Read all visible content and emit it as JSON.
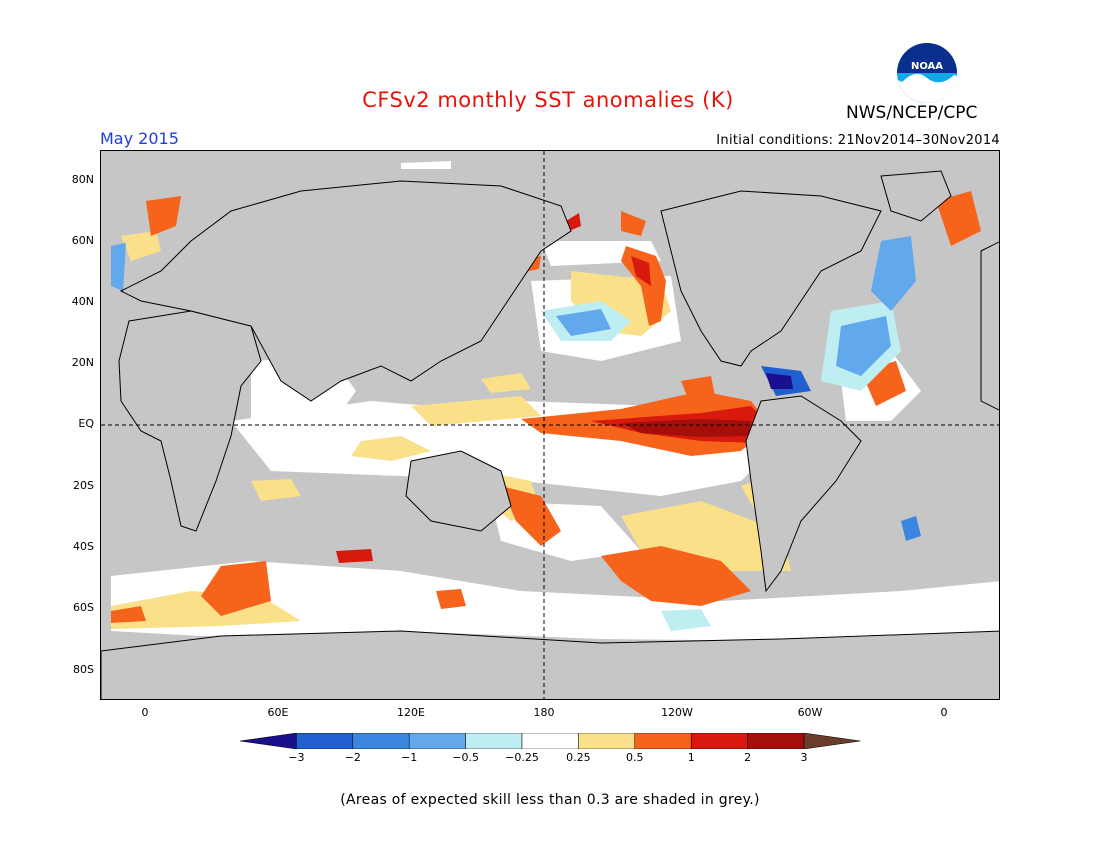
{
  "header": {
    "title": "CFSv2 monthly SST anomalies (K)",
    "agency": "NWS/NCEP/CPC",
    "logo_text": "NOAA",
    "month": "May 2015",
    "initial_conditions": "Initial conditions: 21Nov2014–30Nov2014"
  },
  "map": {
    "lat_labels": [
      "80N",
      "60N",
      "40N",
      "20N",
      "EQ",
      "20S",
      "40S",
      "60S",
      "80S"
    ],
    "lon_labels": [
      "0",
      "60E",
      "120E",
      "180",
      "120W",
      "60W",
      "0"
    ],
    "land_color": "#c6c6c6",
    "reference_lines": [
      "equator",
      "180 meridian"
    ]
  },
  "colorbar": {
    "tick_labels": [
      "−3",
      "−2",
      "−1",
      "−0.5",
      "−0.25",
      "0.25",
      "0.5",
      "1",
      "2",
      "3"
    ],
    "colors": [
      "#1a0f8c",
      "#1f5fd0",
      "#3a86e0",
      "#62a8ec",
      "#bfeef2",
      "#ffffff",
      "#fbe08a",
      "#f5641a",
      "#d81a0e",
      "#a50f0a",
      "#6b3b2c"
    ]
  },
  "footnote": "(Areas of expected skill less than 0.3 are shaded in grey.)"
}
